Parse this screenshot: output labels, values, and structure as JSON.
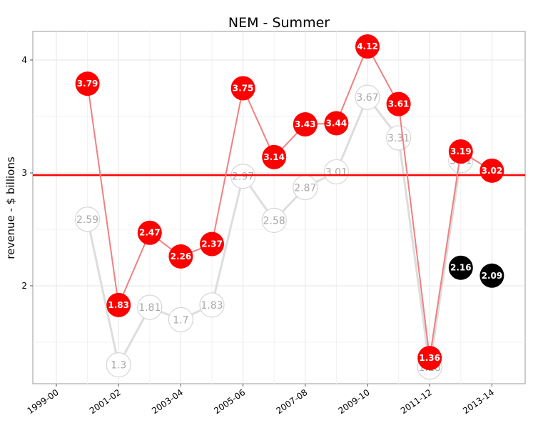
{
  "chart_data": {
    "type": "line",
    "title": "NEM -   Summer",
    "xlabel": "",
    "ylabel": "revenue - $ billions",
    "x_tick_labels": [
      "1999-00",
      "2001-02",
      "2003-04",
      "2005-06",
      "2007-08",
      "2009-10",
      "2011-12",
      "2013-14"
    ],
    "x_range": [
      1999,
      2014.0
    ],
    "ylim": [
      1.15,
      4.5
    ],
    "y_ticks": [
      2,
      3,
      4
    ],
    "grid": true,
    "reference_line": 2.98,
    "series": [
      {
        "style": "grey",
        "color": "#d9d9d9",
        "x": [
          2000,
          2001,
          2002,
          2003,
          2004,
          2005,
          2006,
          2007,
          2008,
          2009,
          2010,
          2011,
          2012
        ],
        "values": [
          2.59,
          1.3,
          1.81,
          1.7,
          1.83,
          2.97,
          2.58,
          2.87,
          3.01,
          3.67,
          3.31,
          1.28,
          3.11
        ],
        "labels": [
          "2.59",
          "1.3",
          "1.81",
          "1.7",
          "1.83",
          "2.97",
          "2.58",
          "2.87",
          "3.01",
          "3.67",
          "3.31",
          "1.28",
          "3.11"
        ]
      },
      {
        "style": "red",
        "color": "#ff0000",
        "x": [
          2000,
          2001,
          2002,
          2003,
          2004,
          2005,
          2006,
          2007,
          2008,
          2009,
          2010,
          2011,
          2012,
          2013
        ],
        "values": [
          3.79,
          1.83,
          2.47,
          2.26,
          2.37,
          3.75,
          3.14,
          3.43,
          3.44,
          4.12,
          3.61,
          1.36,
          3.19,
          3.02
        ],
        "labels": [
          "3.79",
          "1.83",
          "2.47",
          "2.26",
          "2.37",
          "3.75",
          "3.14",
          "3.43",
          "3.44",
          "4.12",
          "3.61",
          "1.36",
          "3.19",
          "3.02"
        ]
      },
      {
        "style": "black",
        "color": "#000000",
        "x": [
          2012,
          2013
        ],
        "values": [
          2.16,
          2.09
        ],
        "labels": [
          "2.16",
          "2.09"
        ]
      }
    ]
  }
}
